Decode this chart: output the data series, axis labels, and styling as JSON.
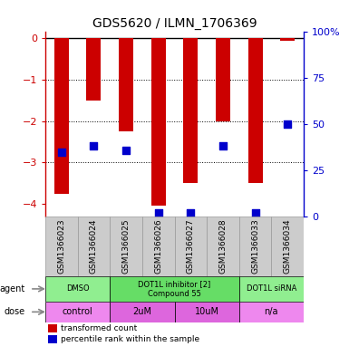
{
  "title": "GDS5620 / ILMN_1706369",
  "samples": [
    "GSM1366023",
    "GSM1366024",
    "GSM1366025",
    "GSM1366026",
    "GSM1366027",
    "GSM1366028",
    "GSM1366033",
    "GSM1366034"
  ],
  "red_values": [
    -3.75,
    -1.5,
    -2.25,
    -4.05,
    -3.5,
    -2.0,
    -3.5,
    -0.05
  ],
  "blue_pct": [
    35,
    38,
    36,
    2,
    2,
    38,
    2,
    50
  ],
  "ylim_left": [
    -4.3,
    0.15
  ],
  "ylim_right": [
    0,
    100
  ],
  "yticks_left": [
    0,
    -1,
    -2,
    -3,
    -4
  ],
  "yticks_right": [
    0,
    25,
    50,
    75,
    100
  ],
  "bar_color": "#cc0000",
  "dot_color": "#0000cc",
  "bg_color": "#ffffff",
  "label_color_left": "#cc0000",
  "label_color_right": "#0000cc",
  "bar_width": 0.45,
  "dot_size": 35,
  "xlabel_fontsize": 6.5,
  "ylabel_fontsize": 8,
  "title_fontsize": 10,
  "agent_configs": [
    {
      "start": 0,
      "end": 2,
      "label": "DMSO",
      "color": "#90ee90"
    },
    {
      "start": 2,
      "end": 6,
      "label": "DOT1L inhibitor [2]\nCompound 55",
      "color": "#66dd66"
    },
    {
      "start": 6,
      "end": 8,
      "label": "DOT1L siRNA",
      "color": "#90ee90"
    }
  ],
  "dose_configs": [
    {
      "start": 0,
      "end": 2,
      "label": "control",
      "color": "#ee88ee"
    },
    {
      "start": 2,
      "end": 4,
      "label": "2uM",
      "color": "#dd66dd"
    },
    {
      "start": 4,
      "end": 6,
      "label": "10uM",
      "color": "#dd66dd"
    },
    {
      "start": 6,
      "end": 8,
      "label": "n/a",
      "color": "#ee88ee"
    }
  ],
  "gray_box_color": "#cccccc",
  "gray_box_edge": "#999999"
}
